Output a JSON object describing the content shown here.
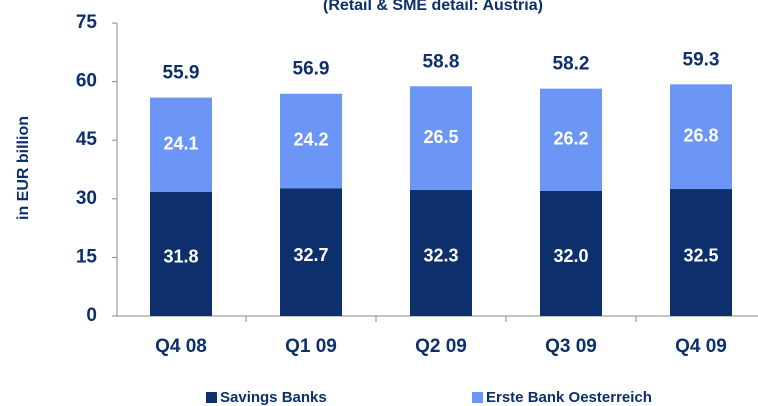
{
  "chart_data": {
    "type": "stacked_bar",
    "subtitle": "(Retail & SME detail: Austria)",
    "y_label": "in EUR billion",
    "categories": [
      "Q4 08",
      "Q1 09",
      "Q2 09",
      "Q3 09",
      "Q4 09"
    ],
    "series": [
      {
        "name": "Savings Banks",
        "color": "#0d2f6b",
        "values": [
          31.8,
          32.7,
          32.3,
          32,
          32.5
        ],
        "value_labels": [
          "31.8",
          "32.7",
          "32.3",
          "32.0",
          "32.5"
        ]
      },
      {
        "name": "Erste Bank Oesterreich",
        "color": "#6b96f5",
        "values": [
          24.1,
          24.2,
          26.5,
          26.2,
          26.8
        ]
      }
    ],
    "totals": [
      55.9,
      56.9,
      58.8,
      58.2,
      59.3
    ],
    "ylim": [
      0,
      75
    ],
    "yticks": [
      0,
      15,
      30,
      45,
      60,
      75
    ],
    "grid": false,
    "legend": "bottom"
  }
}
